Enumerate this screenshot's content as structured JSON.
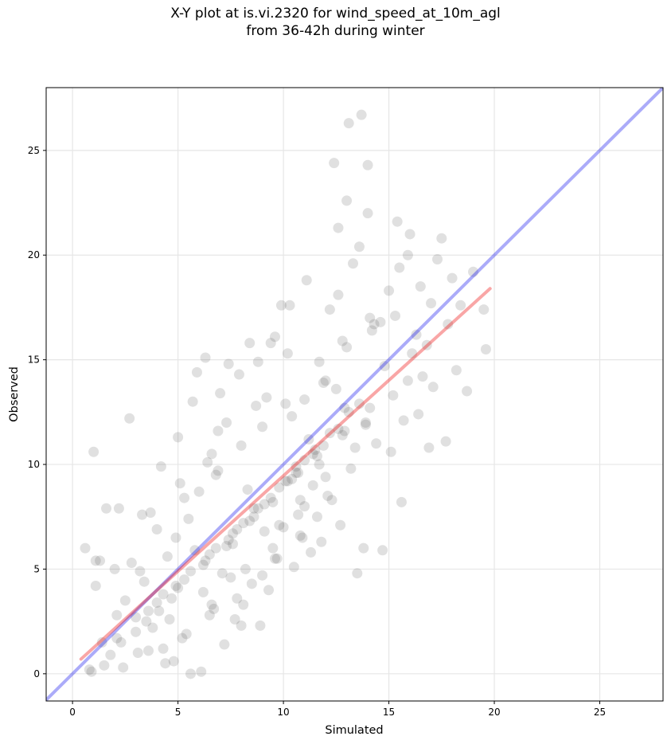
{
  "chart_data": {
    "type": "scatter",
    "title_line1": "X-Y plot at is.vi.2320 for wind_speed_at_10m_agl",
    "title_line2": "from 36-42h during winter",
    "xlabel": "Simulated",
    "ylabel": "Observed",
    "xlim": [
      -1.25,
      28
    ],
    "ylim": [
      -1.3,
      28
    ],
    "xticks": [
      0,
      5,
      10,
      15,
      20,
      25
    ],
    "yticks": [
      0,
      5,
      10,
      15,
      20,
      25
    ],
    "grid": true,
    "colors": {
      "points": "#555555",
      "one_to_one_line": "#0000ee",
      "fit_line": "#ee0000"
    },
    "one_to_one_line": {
      "x": [
        -1.25,
        28
      ],
      "y": [
        -1.25,
        28
      ]
    },
    "fit_line": {
      "x": [
        0.4,
        19.8
      ],
      "y": [
        0.7,
        18.4
      ]
    },
    "points": {
      "x": [
        0.9,
        1.4,
        2.1,
        1.1,
        1.8,
        0.6,
        2.5,
        1.3,
        3.0,
        2.2,
        3.4,
        1.0,
        2.8,
        4.1,
        3.7,
        4.3,
        4.9,
        3.2,
        5.3,
        4.6,
        2.7,
        5.8,
        5.1,
        6.2,
        4.0,
        6.6,
        5.5,
        7.1,
        3.6,
        6.0,
        7.6,
        5.0,
        8.1,
        6.8,
        4.5,
        7.3,
        8.6,
        5.7,
        9.0,
        6.4,
        8.3,
        9.5,
        7.9,
        10.1,
        6.9,
        9.8,
        8.7,
        10.6,
        7.4,
        11.0,
        9.2,
        11.5,
        8.4,
        10.4,
        12.0,
        9.6,
        11.2,
        12.5,
        10.8,
        9.9,
        12.9,
        11.7,
        13.4,
        10.2,
        12.2,
        13.9,
        11.9,
        14.3,
        12.6,
        13.1,
        14.8,
        13.6,
        15.2,
        12.8,
        14.1,
        15.7,
        13.3,
        16.1,
        14.6,
        15.0,
        16.6,
        14.0,
        17.0,
        15.5,
        16.3,
        17.5,
        15.9,
        18.0,
        16.8,
        17.3,
        18.4,
        17.8,
        19.0,
        16.0,
        18.7,
        19.5,
        13.1,
        13.7,
        12.4,
        14.0,
        13.0,
        15.4,
        15.9,
        12.6,
        11.1,
        10.3,
        9.4,
        8.8,
        7.0,
        6.3,
        5.9,
        4.2,
        3.3,
        1.6,
        2.0,
        1.1,
        6.5,
        7.8,
        8.9,
        9.7,
        10.9,
        11.6,
        12.3,
        13.2,
        14.4,
        15.1,
        16.4,
        17.1,
        18.2,
        19.6,
        3.8,
        5.2,
        6.7,
        7.5,
        8.2,
        9.1,
        10.0,
        10.7,
        11.4,
        12.1,
        4.8,
        5.6,
        6.1,
        7.2,
        8.0,
        9.3,
        10.5,
        11.8,
        12.7,
        13.8,
        2.4,
        3.1,
        4.4,
        5.4,
        6.6,
        7.7,
        8.5,
        9.6,
        10.8,
        11.3,
        13.5,
        14.7,
        15.6,
        16.9,
        17.7,
        0.8,
        1.5,
        2.3,
        3.5,
        4.7,
        6.9,
        8.0,
        9.0,
        10.1,
        11.0,
        12.0,
        13.0,
        14.2,
        15.3,
        16.5,
        7.3,
        8.4,
        9.5,
        10.6,
        11.7,
        12.8,
        13.9,
        5.0,
        6.2,
        7.4,
        8.6,
        9.8,
        11.0,
        12.2,
        4.0,
        5.3,
        6.5,
        7.8,
        9.1,
        10.4,
        11.6,
        12.9,
        14.1,
        3.0,
        4.3,
        5.6,
        6.8,
        8.1,
        9.4,
        10.7,
        11.9,
        2.1,
        3.6,
        4.9,
        6.3,
        7.6,
        8.8,
        10.2,
        11.4,
        12.6,
        13.6
      ],
      "y": [
        0.1,
        1.5,
        2.8,
        4.2,
        0.9,
        6.0,
        3.5,
        5.4,
        2.0,
        7.9,
        4.4,
        10.6,
        5.3,
        3.0,
        7.7,
        1.2,
        6.5,
        4.9,
        8.4,
        2.6,
        12.2,
        5.9,
        9.1,
        3.9,
        6.9,
        10.5,
        7.4,
        4.8,
        1.1,
        8.7,
        6.2,
        11.3,
        3.3,
        9.5,
        5.6,
        12.0,
        7.9,
        13.0,
        4.7,
        10.1,
        8.8,
        6.0,
        14.3,
        9.2,
        11.6,
        7.1,
        12.8,
        9.9,
        14.8,
        8.0,
        13.2,
        10.7,
        15.8,
        12.3,
        9.4,
        16.1,
        11.2,
        13.6,
        8.3,
        17.6,
        12.7,
        14.9,
        10.8,
        15.3,
        17.4,
        11.9,
        13.9,
        16.7,
        18.1,
        12.5,
        14.7,
        20.4,
        13.3,
        15.9,
        17.0,
        12.1,
        19.6,
        15.3,
        16.8,
        18.3,
        14.2,
        22.0,
        17.7,
        19.4,
        16.2,
        20.8,
        14.0,
        18.9,
        15.7,
        19.8,
        17.6,
        16.7,
        19.2,
        21.0,
        13.5,
        17.4,
        26.3,
        26.7,
        24.4,
        24.3,
        22.6,
        21.6,
        20.0,
        21.3,
        18.8,
        17.6,
        15.8,
        14.9,
        13.4,
        15.1,
        14.4,
        9.9,
        7.6,
        7.9,
        5.0,
        5.4,
        2.8,
        3.6,
        2.3,
        5.5,
        6.5,
        7.5,
        8.3,
        9.8,
        11.0,
        10.6,
        12.4,
        13.7,
        14.5,
        15.5,
        2.2,
        1.7,
        3.1,
        4.6,
        5.0,
        6.8,
        7.0,
        7.6,
        9.0,
        8.5,
        0.6,
        0.0,
        0.1,
        1.4,
        2.3,
        4.0,
        5.1,
        6.3,
        7.1,
        6.0,
        0.3,
        1.0,
        0.5,
        1.9,
        3.3,
        2.6,
        4.3,
        5.5,
        6.6,
        5.8,
        4.8,
        5.9,
        8.2,
        10.8,
        11.1,
        0.2,
        0.4,
        1.5,
        2.5,
        3.6,
        9.7,
        10.9,
        11.8,
        12.9,
        13.1,
        14.0,
        15.6,
        16.4,
        17.1,
        18.5,
        6.1,
        7.3,
        8.2,
        9.6,
        10.0,
        11.4,
        12.0,
        4.1,
        5.2,
        6.4,
        7.5,
        8.9,
        10.2,
        11.5,
        3.4,
        4.5,
        5.7,
        6.9,
        8.1,
        9.3,
        10.4,
        11.6,
        12.7,
        2.7,
        3.8,
        4.9,
        6.0,
        7.2,
        8.4,
        9.6,
        10.9,
        1.7,
        3.0,
        4.2,
        5.4,
        6.7,
        7.9,
        9.2,
        10.5,
        11.7,
        12.9
      ]
    }
  }
}
